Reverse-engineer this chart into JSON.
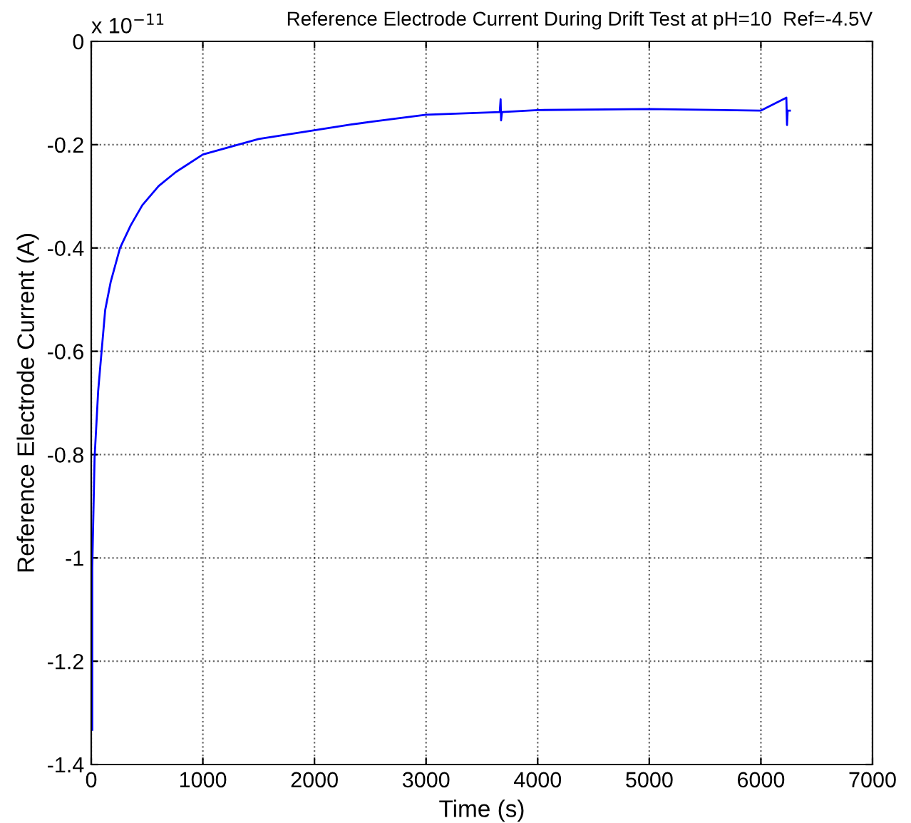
{
  "chart_data": {
    "type": "line",
    "title": "Reference Electrode Current During Drift Test at pH=10  Ref=-4.5V",
    "xlabel": "Time (s)",
    "ylabel": "Reference Electrode Current (A)",
    "annotations": [
      "x 10$^{−11}$"
    ],
    "series": [
      {
        "color": "#0000ff",
        "x": [
          9,
          9,
          30,
          62,
          92,
          125,
          175,
          258,
          354,
          458,
          604,
          758,
          1000,
          1500,
          2000,
          2325,
          2500,
          3000,
          3660,
          3668,
          3672,
          3680,
          4000,
          5000,
          6000,
          6228,
          6234,
          6240,
          6260
        ],
        "values": [
          -1.333,
          -1.019,
          -0.806,
          -0.677,
          -0.602,
          -0.52,
          -0.465,
          -0.4,
          -0.356,
          -0.317,
          -0.28,
          -0.253,
          -0.219,
          -0.189,
          -0.172,
          -0.161,
          -0.156,
          -0.142,
          -0.137,
          -0.112,
          -0.153,
          -0.137,
          -0.133,
          -0.131,
          -0.134,
          -0.109,
          -0.162,
          -0.134,
          -0.134
        ]
      }
    ],
    "xlim": [
      0,
      7000
    ],
    "xticks": [
      0,
      1000,
      2000,
      3000,
      4000,
      5000,
      6000,
      7000
    ],
    "ylim": [
      -1.4,
      0
    ],
    "yticks": [
      {
        "value": -1.4,
        "label": "-1.4"
      },
      {
        "value": -1.2,
        "label": "-1.2"
      },
      {
        "value": -1,
        "label": "-1"
      },
      {
        "value": -0.8,
        "label": "-0.8"
      },
      {
        "value": -0.6,
        "label": "-0.6"
      },
      {
        "value": -0.4,
        "label": "-0.4"
      },
      {
        "value": -0.2,
        "label": "-0.2"
      },
      0
    ],
    "grid": true,
    "marker": "none",
    "line_style": "solid"
  }
}
